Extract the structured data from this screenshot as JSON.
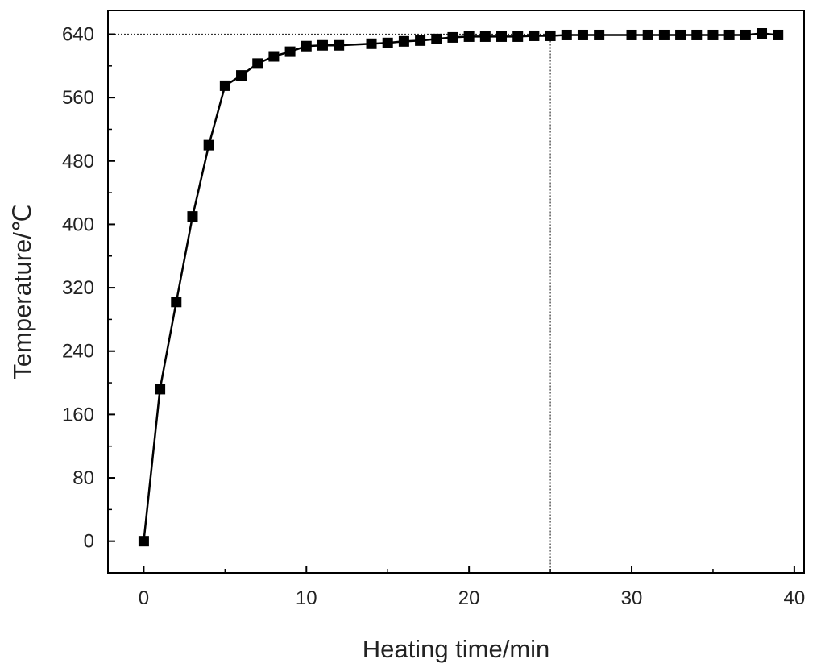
{
  "chart_data": {
    "type": "line",
    "title": "",
    "xlabel": "Heating time/min",
    "ylabel": "Temperature/℃",
    "xlim": [
      -2.2,
      40.6
    ],
    "ylim": [
      -40,
      670
    ],
    "x_ticks": [
      0,
      10,
      20,
      30,
      40
    ],
    "x_tick_labels": [
      "0",
      "10",
      "20",
      "30",
      "40"
    ],
    "y_ticks": [
      0,
      80,
      160,
      240,
      320,
      400,
      480,
      560,
      640
    ],
    "y_tick_labels": [
      "0",
      "80",
      "160",
      "240",
      "320",
      "400",
      "480",
      "560",
      "640"
    ],
    "grid": false,
    "marker": "square",
    "series": [
      {
        "x": [
          0,
          1,
          2,
          3,
          4,
          5,
          6,
          7,
          8,
          9,
          10,
          11,
          12,
          14,
          15,
          16,
          17,
          18,
          19,
          20,
          21,
          22,
          23,
          24,
          25,
          26,
          27,
          28,
          30,
          31,
          32,
          33,
          34,
          35,
          36,
          37,
          38,
          39
        ],
        "y": [
          0,
          192,
          302,
          410,
          500,
          575,
          588,
          603,
          612,
          618,
          625,
          626,
          626,
          628,
          629,
          631,
          632,
          634,
          636,
          637,
          637,
          637,
          637,
          638,
          638,
          639,
          639,
          639,
          639,
          639,
          639,
          639,
          639,
          639,
          639,
          639,
          641,
          639
        ]
      }
    ],
    "reference_lines": [
      {
        "orientation": "horizontal",
        "value": 640,
        "style": "dotted"
      },
      {
        "orientation": "vertical",
        "value": 25,
        "style": "dotted"
      }
    ]
  }
}
